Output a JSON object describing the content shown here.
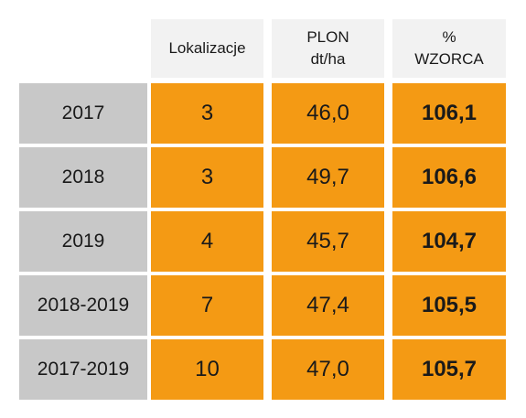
{
  "header": {
    "col1": [
      "Lokalizacje"
    ],
    "col2": [
      "PLON",
      "dt/ha"
    ],
    "col3": [
      "%",
      "WZORCA"
    ]
  },
  "rows": [
    {
      "label": "2017",
      "lokalizacje": "3",
      "plon": "46,0",
      "wzorca": "106,1"
    },
    {
      "label": "2018",
      "lokalizacje": "3",
      "plon": "49,7",
      "wzorca": "106,6"
    },
    {
      "label": "2019",
      "lokalizacje": "4",
      "plon": "45,7",
      "wzorca": "104,7"
    },
    {
      "label": "2018-2019",
      "lokalizacje": "7",
      "plon": "47,4",
      "wzorca": "105,5"
    },
    {
      "label": "2017-2019",
      "lokalizacje": "10",
      "plon": "47,0",
      "wzorca": "105,7"
    }
  ],
  "colors": {
    "label_bg": "#c8c8c8",
    "value_bg": "#f49a14",
    "header_bg": "#f2f2f2"
  }
}
